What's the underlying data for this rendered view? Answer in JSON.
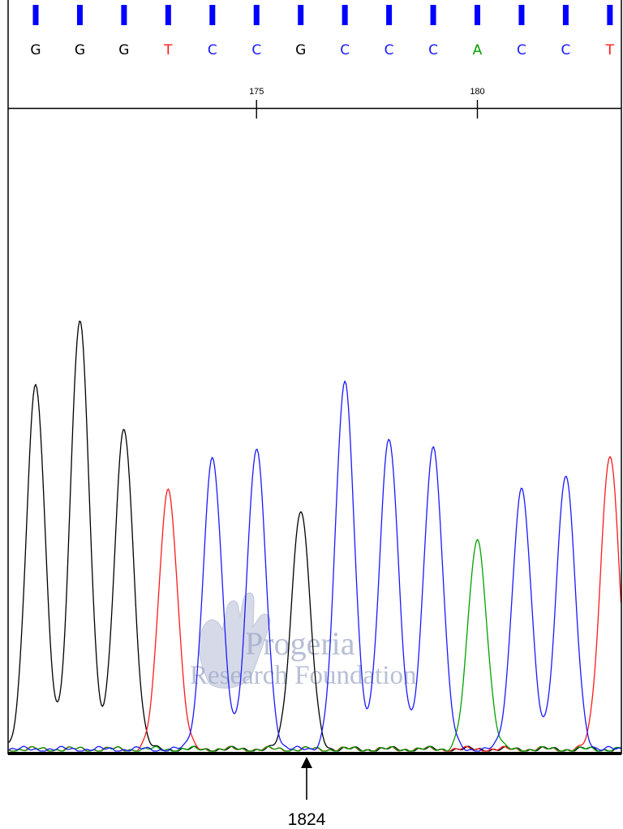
{
  "colors": {
    "A": "#00a000",
    "C": "#1a1aff",
    "G": "#000000",
    "T": "#ff1a1a"
  },
  "watermark": {
    "line1": "Progeria",
    "line2": "Research Foundation"
  },
  "marker": {
    "label": "1824"
  },
  "chart_data": {
    "type": "line",
    "title": "",
    "xlabel": "",
    "ylabel": "",
    "bases": [
      "G",
      "G",
      "G",
      "T",
      "C",
      "C",
      "G",
      "C",
      "C",
      "C",
      "A",
      "C",
      "C",
      "T"
    ],
    "positions": [
      170,
      171,
      172,
      173,
      174,
      175,
      176,
      177,
      178,
      179,
      180,
      181,
      182,
      183
    ],
    "position_ticks": [
      {
        "position": 175,
        "label": "175"
      },
      {
        "position": 180,
        "label": "180"
      }
    ],
    "series": [
      {
        "name": "A",
        "peaks": [
          {
            "position": 180,
            "height": 0.49
          }
        ]
      },
      {
        "name": "C",
        "peaks": [
          {
            "position": 174,
            "height": 0.68
          },
          {
            "position": 175,
            "height": 0.7
          },
          {
            "position": 177,
            "height": 0.86
          },
          {
            "position": 178,
            "height": 0.73
          },
          {
            "position": 179,
            "height": 0.71
          },
          {
            "position": 181,
            "height": 0.61
          },
          {
            "position": 182,
            "height": 0.64
          }
        ]
      },
      {
        "name": "G",
        "peaks": [
          {
            "position": 170,
            "height": 0.85
          },
          {
            "position": 171,
            "height": 1.0
          },
          {
            "position": 172,
            "height": 0.75
          },
          {
            "position": 176,
            "height": 0.56
          }
        ]
      },
      {
        "name": "T",
        "peaks": [
          {
            "position": 173,
            "height": 0.61
          },
          {
            "position": 183,
            "height": 0.69
          }
        ]
      }
    ]
  }
}
